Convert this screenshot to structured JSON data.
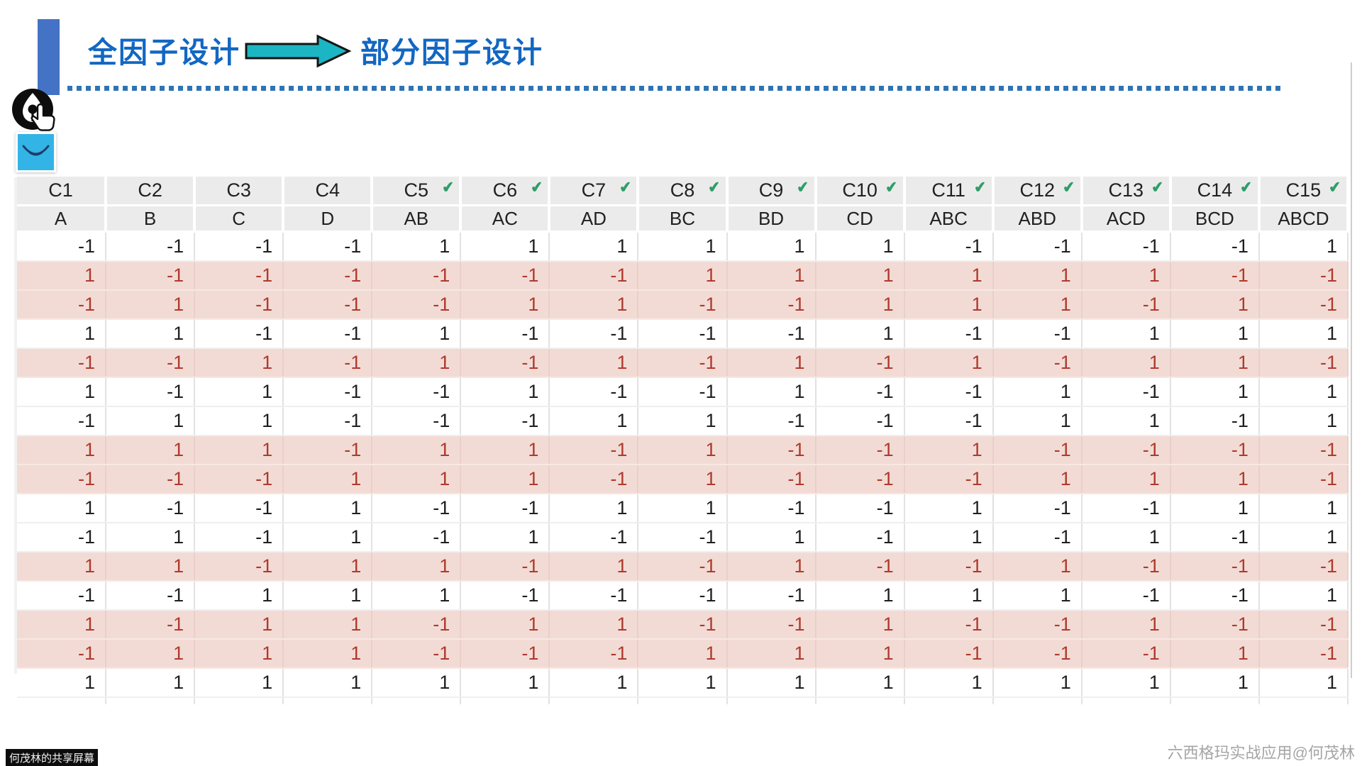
{
  "header": {
    "title_left": "全因子设计",
    "title_right": "部分因子设计"
  },
  "icons": {
    "arrow": "arrow-right-icon",
    "pen": "pen-annotate-icon",
    "tool": "smile-tool-icon",
    "check_glyph": "✔"
  },
  "colors": {
    "accent_blue": "#1267c2",
    "bar_blue": "#4472c4",
    "arrow_teal": "#1cb5c3",
    "dotted_blue": "#2e74b5",
    "check_green": "#2d9e68",
    "highlight_bg": "#f3dbd5",
    "highlight_text": "#ae3a2d",
    "tool_blue": "#33b4e7"
  },
  "table": {
    "columns": [
      {
        "id": "C1",
        "factor": "A",
        "checked": false
      },
      {
        "id": "C2",
        "factor": "B",
        "checked": false
      },
      {
        "id": "C3",
        "factor": "C",
        "checked": false
      },
      {
        "id": "C4",
        "factor": "D",
        "checked": false
      },
      {
        "id": "C5",
        "factor": "AB",
        "checked": true
      },
      {
        "id": "C6",
        "factor": "AC",
        "checked": true
      },
      {
        "id": "C7",
        "factor": "AD",
        "checked": true
      },
      {
        "id": "C8",
        "factor": "BC",
        "checked": true
      },
      {
        "id": "C9",
        "factor": "BD",
        "checked": true
      },
      {
        "id": "C10",
        "factor": "CD",
        "checked": true
      },
      {
        "id": "C11",
        "factor": "ABC",
        "checked": true
      },
      {
        "id": "C12",
        "factor": "ABD",
        "checked": true
      },
      {
        "id": "C13",
        "factor": "ACD",
        "checked": true
      },
      {
        "id": "C14",
        "factor": "BCD",
        "checked": true
      },
      {
        "id": "C15",
        "factor": "ABCD",
        "checked": true
      }
    ],
    "rows": [
      {
        "highlighted": false,
        "values": [
          -1,
          -1,
          -1,
          -1,
          1,
          1,
          1,
          1,
          1,
          1,
          -1,
          -1,
          -1,
          -1,
          1
        ]
      },
      {
        "highlighted": true,
        "values": [
          1,
          -1,
          -1,
          -1,
          -1,
          -1,
          -1,
          1,
          1,
          1,
          1,
          1,
          1,
          -1,
          -1
        ]
      },
      {
        "highlighted": true,
        "values": [
          -1,
          1,
          -1,
          -1,
          -1,
          1,
          1,
          -1,
          -1,
          1,
          1,
          1,
          -1,
          1,
          -1
        ]
      },
      {
        "highlighted": false,
        "values": [
          1,
          1,
          -1,
          -1,
          1,
          -1,
          -1,
          -1,
          -1,
          1,
          -1,
          -1,
          1,
          1,
          1
        ]
      },
      {
        "highlighted": true,
        "values": [
          -1,
          -1,
          1,
          -1,
          1,
          -1,
          1,
          -1,
          1,
          -1,
          1,
          -1,
          1,
          1,
          -1
        ]
      },
      {
        "highlighted": false,
        "values": [
          1,
          -1,
          1,
          -1,
          -1,
          1,
          -1,
          -1,
          1,
          -1,
          -1,
          1,
          -1,
          1,
          1
        ]
      },
      {
        "highlighted": false,
        "values": [
          -1,
          1,
          1,
          -1,
          -1,
          -1,
          1,
          1,
          -1,
          -1,
          -1,
          1,
          1,
          -1,
          1
        ]
      },
      {
        "highlighted": true,
        "values": [
          1,
          1,
          1,
          -1,
          1,
          1,
          -1,
          1,
          -1,
          -1,
          1,
          -1,
          -1,
          -1,
          -1
        ]
      },
      {
        "highlighted": true,
        "values": [
          -1,
          -1,
          -1,
          1,
          1,
          1,
          -1,
          1,
          -1,
          -1,
          -1,
          1,
          1,
          1,
          -1
        ]
      },
      {
        "highlighted": false,
        "values": [
          1,
          -1,
          -1,
          1,
          -1,
          -1,
          1,
          1,
          -1,
          -1,
          1,
          -1,
          -1,
          1,
          1
        ]
      },
      {
        "highlighted": false,
        "values": [
          -1,
          1,
          -1,
          1,
          -1,
          1,
          -1,
          -1,
          1,
          -1,
          1,
          -1,
          1,
          -1,
          1
        ]
      },
      {
        "highlighted": true,
        "values": [
          1,
          1,
          -1,
          1,
          1,
          -1,
          1,
          -1,
          1,
          -1,
          -1,
          1,
          -1,
          -1,
          -1
        ]
      },
      {
        "highlighted": false,
        "values": [
          -1,
          -1,
          1,
          1,
          1,
          -1,
          -1,
          -1,
          -1,
          1,
          1,
          1,
          -1,
          -1,
          1
        ]
      },
      {
        "highlighted": true,
        "values": [
          1,
          -1,
          1,
          1,
          -1,
          1,
          1,
          -1,
          -1,
          1,
          -1,
          -1,
          1,
          -1,
          -1
        ]
      },
      {
        "highlighted": true,
        "values": [
          -1,
          1,
          1,
          1,
          -1,
          -1,
          -1,
          1,
          1,
          1,
          -1,
          -1,
          -1,
          1,
          -1
        ]
      },
      {
        "highlighted": false,
        "values": [
          1,
          1,
          1,
          1,
          1,
          1,
          1,
          1,
          1,
          1,
          1,
          1,
          1,
          1,
          1
        ]
      }
    ]
  },
  "footer": {
    "share_badge": "何茂林的共享屏幕",
    "credit": "六西格玛实战应用@何茂林"
  }
}
